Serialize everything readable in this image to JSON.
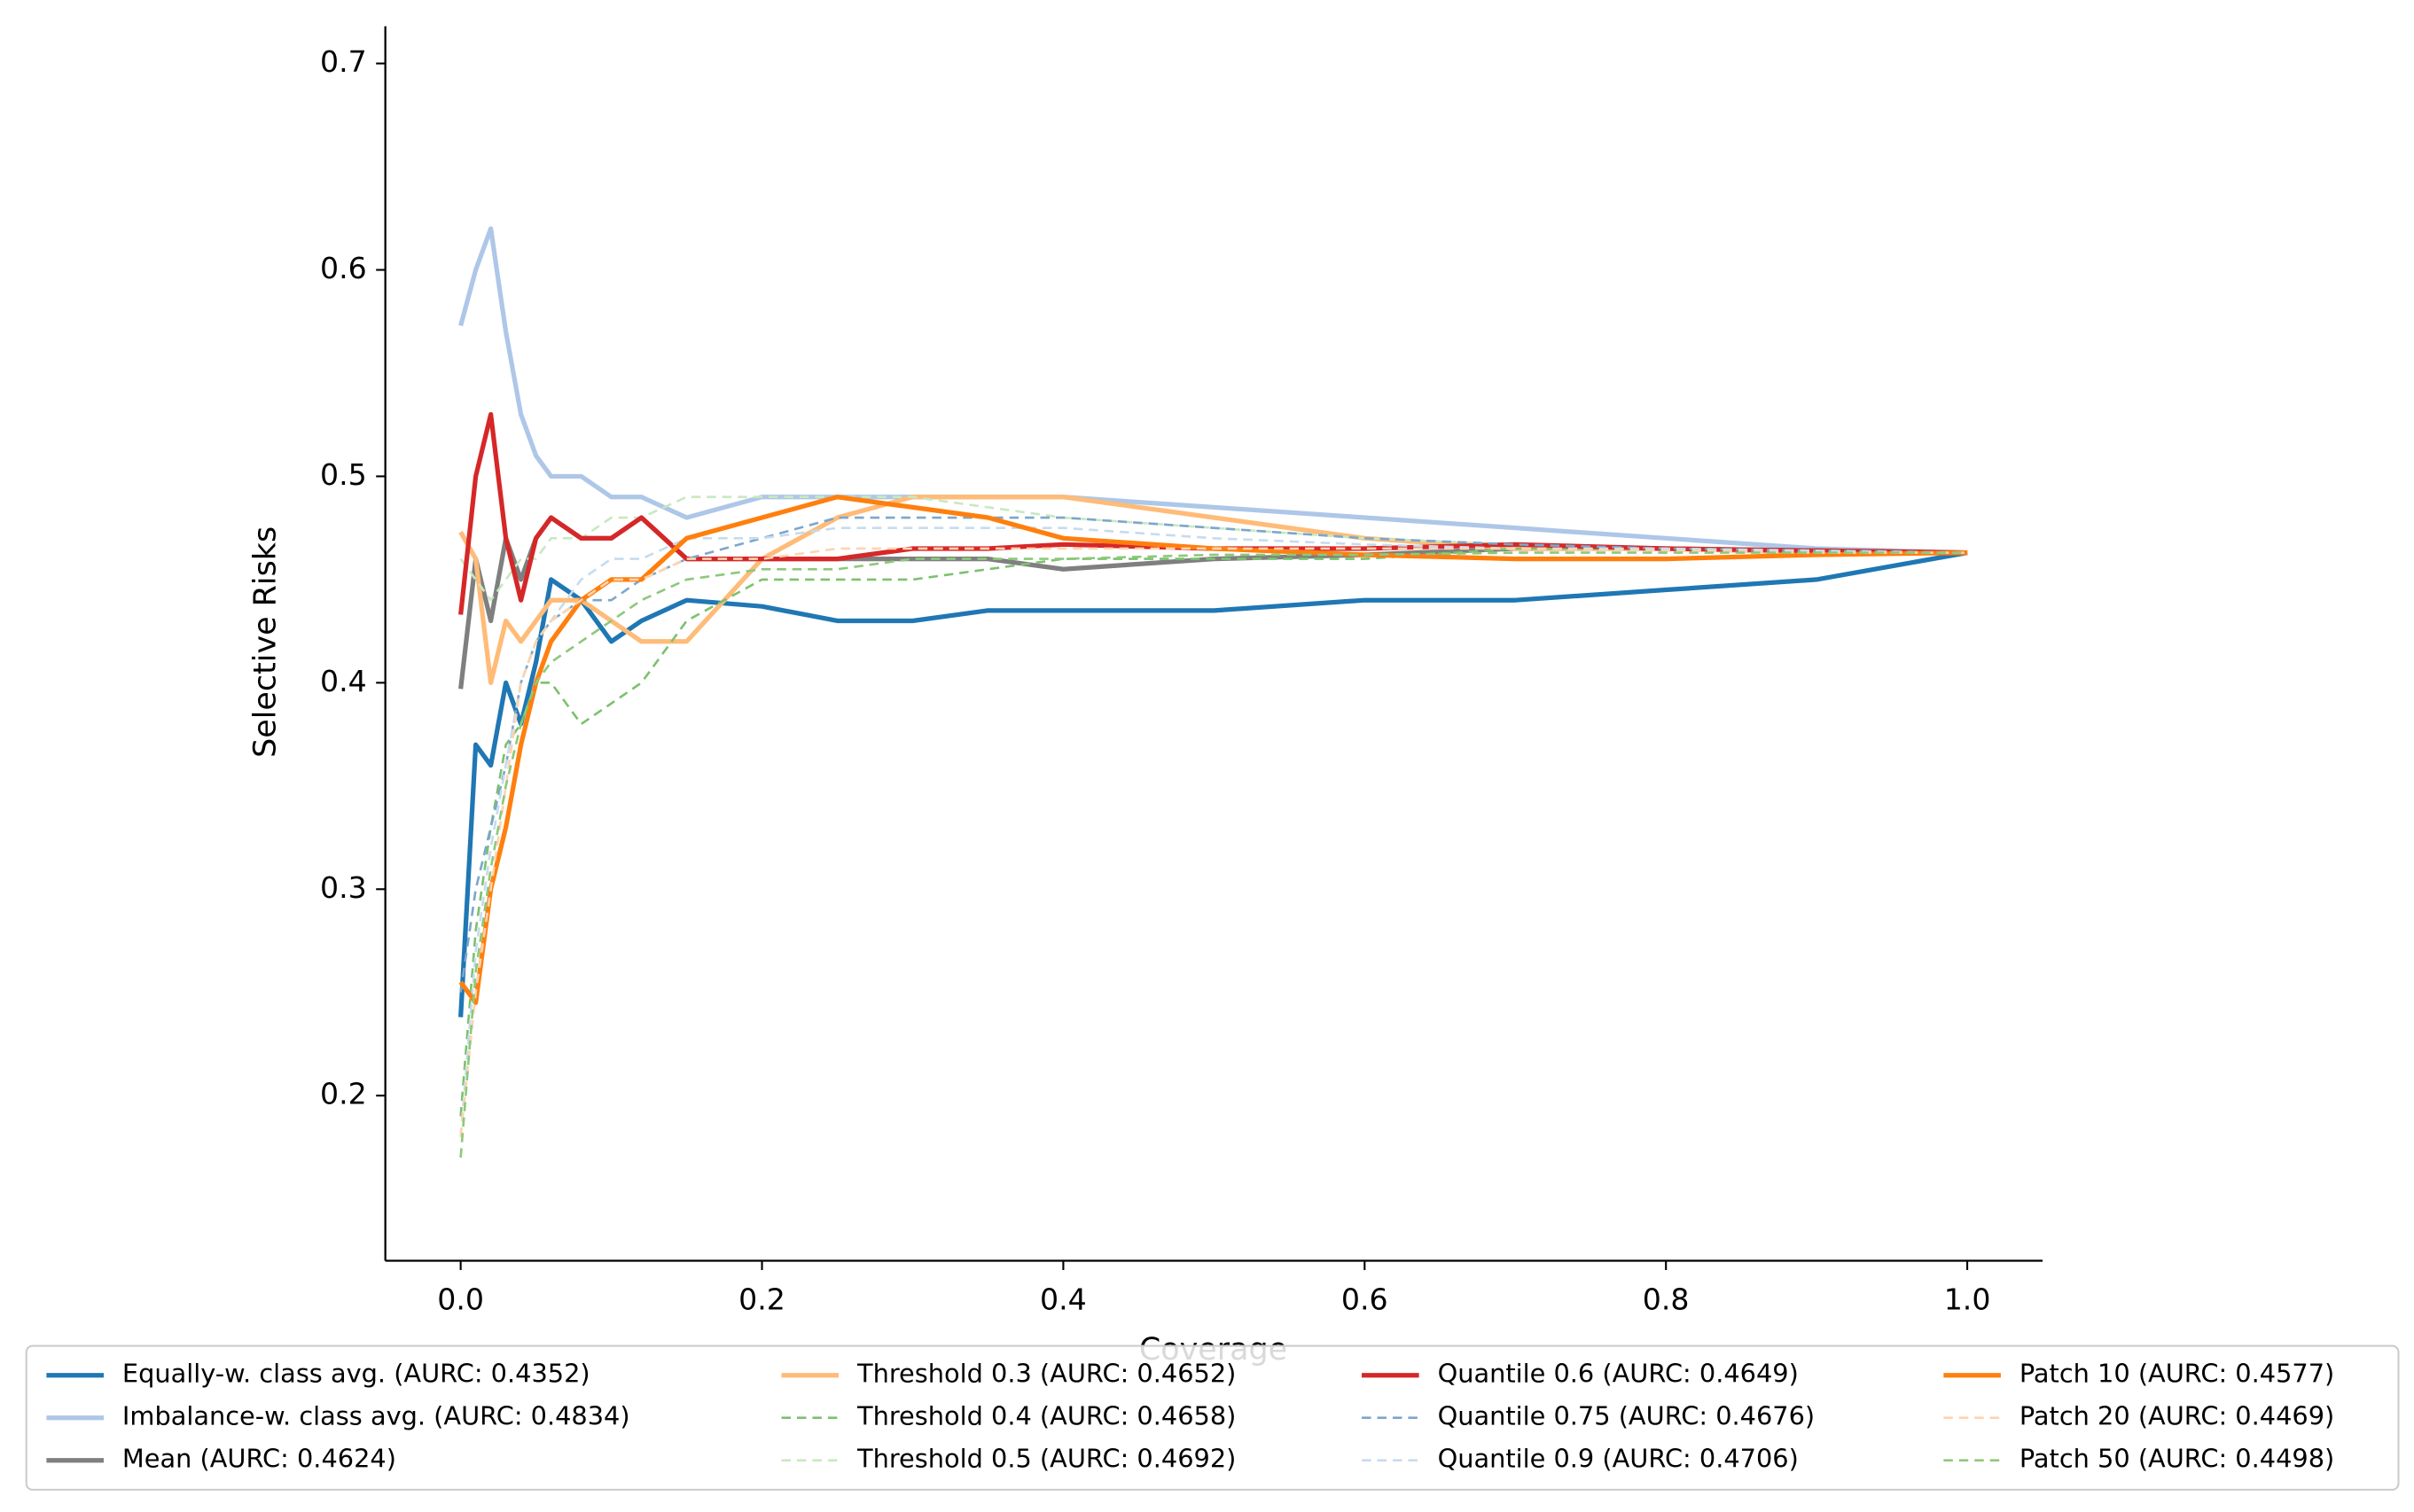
{
  "chart_data": {
    "type": "line",
    "xlabel": "Coverage",
    "ylabel": "Selective Risks",
    "xlim": [
      -0.05,
      1.05
    ],
    "ylim": [
      0.12,
      0.718
    ],
    "xticks": [
      {
        "value": 0,
        "label": "0.0"
      },
      0.2,
      0.4,
      0.6,
      0.8,
      {
        "value": 1,
        "label": "1.0"
      }
    ],
    "yticks": [
      0.2,
      0.3,
      0.4,
      0.5,
      0.6,
      0.7
    ],
    "grid": false,
    "legend": "bottom",
    "legend_columns": 4,
    "x": [
      0,
      0.01,
      0.02,
      0.03,
      0.04,
      0.05,
      0.06,
      0.08,
      0.1,
      0.12,
      0.15,
      0.2,
      0.25,
      0.3,
      0.35,
      0.4,
      0.5,
      0.6,
      0.7,
      0.8,
      0.9,
      1.0
    ],
    "series": [
      {
        "name": "Equally-w. class avg. (AURC: 0.4352)",
        "color": "#1f77b4",
        "style": "solid",
        "linewidth": 3,
        "values": [
          0.238,
          0.37,
          0.36,
          0.4,
          0.38,
          0.41,
          0.45,
          0.44,
          0.42,
          0.43,
          0.44,
          0.437,
          0.43,
          0.43,
          0.435,
          0.435,
          0.435,
          0.44,
          0.44,
          0.445,
          0.45,
          0.463
        ]
      },
      {
        "name": "Imbalance-w. class avg. (AURC: 0.4834)",
        "color": "#aec7e8",
        "style": "solid",
        "linewidth": 3,
        "values": [
          0.573,
          0.6,
          0.62,
          0.57,
          0.53,
          0.51,
          0.5,
          0.5,
          0.49,
          0.49,
          0.48,
          0.49,
          0.49,
          0.49,
          0.49,
          0.49,
          0.485,
          0.48,
          0.475,
          0.47,
          0.465,
          0.463
        ]
      },
      {
        "name": "Mean (AURC: 0.4624)",
        "color": "#7f7f7f",
        "style": "solid",
        "linewidth": 3,
        "values": [
          0.397,
          0.46,
          0.43,
          0.47,
          0.45,
          0.47,
          0.48,
          0.47,
          0.47,
          0.48,
          0.46,
          0.46,
          0.46,
          0.46,
          0.46,
          0.455,
          0.46,
          0.462,
          0.465,
          0.465,
          0.464,
          0.463
        ]
      },
      {
        "name": "Threshold 0.3 (AURC: 0.4652)",
        "color": "#ffbb78",
        "style": "solid",
        "linewidth": 3,
        "values": [
          0.473,
          0.46,
          0.4,
          0.43,
          0.42,
          0.43,
          0.44,
          0.44,
          0.43,
          0.42,
          0.42,
          0.46,
          0.48,
          0.49,
          0.49,
          0.49,
          0.48,
          0.47,
          0.465,
          0.465,
          0.463,
          0.463
        ]
      },
      {
        "name": "Threshold 0.4 (AURC: 0.4658)",
        "color": "#7cc16e",
        "style": "dashed",
        "linewidth": 1.5,
        "values": [
          0.19,
          0.28,
          0.33,
          0.37,
          0.38,
          0.4,
          0.4,
          0.38,
          0.39,
          0.4,
          0.43,
          0.45,
          0.45,
          0.45,
          0.455,
          0.46,
          0.46,
          0.46,
          0.465,
          0.465,
          0.463,
          0.463
        ]
      },
      {
        "name": "Threshold 0.5 (AURC: 0.4692)",
        "color": "#c7e9c0",
        "style": "dashed",
        "linewidth": 1.5,
        "values": [
          0.46,
          0.45,
          0.44,
          0.45,
          0.46,
          0.46,
          0.47,
          0.47,
          0.48,
          0.48,
          0.49,
          0.49,
          0.49,
          0.49,
          0.485,
          0.48,
          0.475,
          0.47,
          0.467,
          0.465,
          0.464,
          0.463
        ]
      },
      {
        "name": "Quantile 0.6 (AURC: 0.4649)",
        "color": "#d62728",
        "style": "solid",
        "linewidth": 3,
        "values": [
          0.433,
          0.5,
          0.53,
          0.47,
          0.44,
          0.47,
          0.48,
          0.47,
          0.47,
          0.48,
          0.46,
          0.46,
          0.46,
          0.465,
          0.465,
          0.467,
          0.465,
          0.465,
          0.467,
          0.465,
          0.464,
          0.463
        ]
      },
      {
        "name": "Quantile 0.75 (AURC: 0.4676)",
        "color": "#7ba7cc",
        "style": "dashed",
        "linewidth": 1.5,
        "values": [
          0.25,
          0.3,
          0.33,
          0.36,
          0.4,
          0.42,
          0.43,
          0.44,
          0.44,
          0.45,
          0.46,
          0.47,
          0.48,
          0.48,
          0.48,
          0.48,
          0.475,
          0.47,
          0.467,
          0.465,
          0.464,
          0.463
        ]
      },
      {
        "name": "Quantile 0.9 (AURC: 0.4706)",
        "color": "#c6dbef",
        "style": "dashed",
        "linewidth": 1.5,
        "values": [
          0.18,
          0.27,
          0.32,
          0.36,
          0.4,
          0.42,
          0.43,
          0.45,
          0.46,
          0.46,
          0.47,
          0.47,
          0.475,
          0.475,
          0.475,
          0.475,
          0.47,
          0.467,
          0.465,
          0.465,
          0.464,
          0.463
        ]
      },
      {
        "name": "Patch 10 (AURC: 0.4577)",
        "color": "#ff7f0e",
        "style": "solid",
        "linewidth": 3,
        "values": [
          0.255,
          0.245,
          0.3,
          0.33,
          0.37,
          0.4,
          0.42,
          0.44,
          0.45,
          0.45,
          0.47,
          0.48,
          0.49,
          0.485,
          0.48,
          0.47,
          0.465,
          0.462,
          0.46,
          0.46,
          0.462,
          0.463
        ]
      },
      {
        "name": "Patch 20 (AURC: 0.4469)",
        "color": "#ffd3b0",
        "style": "dashed",
        "linewidth": 1.5,
        "values": [
          0.18,
          0.25,
          0.3,
          0.35,
          0.4,
          0.42,
          0.43,
          0.44,
          0.45,
          0.45,
          0.46,
          0.46,
          0.465,
          0.465,
          0.465,
          0.465,
          0.465,
          0.465,
          0.465,
          0.464,
          0.463,
          0.463
        ]
      },
      {
        "name": "Patch 50 (AURC: 0.4498)",
        "color": "#8cc97a",
        "style": "dashed",
        "linewidth": 1.5,
        "values": [
          0.17,
          0.26,
          0.31,
          0.35,
          0.38,
          0.4,
          0.41,
          0.42,
          0.43,
          0.44,
          0.45,
          0.455,
          0.455,
          0.46,
          0.46,
          0.46,
          0.462,
          0.462,
          0.463,
          0.463,
          0.463,
          0.463
        ]
      }
    ]
  }
}
